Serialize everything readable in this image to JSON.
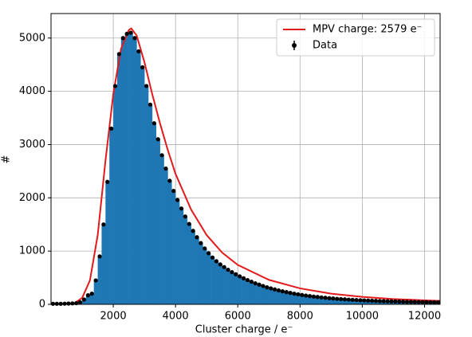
{
  "chart_data": {
    "type": "histogram",
    "xlabel": "Cluster charge / e⁻",
    "ylabel": "#",
    "bins": [
      0,
      125,
      250,
      375,
      500,
      625,
      750,
      875,
      1000,
      1125,
      1250,
      1375,
      1500,
      1625,
      1750,
      1875,
      2000,
      2125,
      2250,
      2375,
      2500,
      2625,
      2750,
      2875,
      3000,
      3125,
      3250,
      3375,
      3500,
      3625,
      3750,
      3875,
      4000,
      4125,
      4250,
      4375,
      4500,
      4625,
      4750,
      4875,
      5000,
      5125,
      5250,
      5375,
      5500,
      5625,
      5750,
      5875,
      6000,
      6125,
      6250,
      6375,
      6500,
      6625,
      6750,
      6875,
      7000,
      7125,
      7250,
      7375,
      7500,
      7625,
      7750,
      7875,
      8000,
      8125,
      8250,
      8375,
      8500,
      8625,
      8750,
      8875,
      9000,
      9125,
      9250,
      9375,
      9500,
      9625,
      9750,
      9875,
      10000,
      10125,
      10250,
      10375,
      10500,
      10625,
      10750,
      10875,
      11000,
      11125,
      11250,
      11375,
      11500,
      11625,
      11750,
      11875,
      12000,
      12125,
      12250,
      12375,
      12500
    ],
    "counts": [
      10,
      10,
      10,
      12,
      15,
      18,
      22,
      40,
      90,
      170,
      200,
      450,
      900,
      1500,
      2300,
      3300,
      4100,
      4700,
      5000,
      5080,
      5100,
      5000,
      4750,
      4450,
      4100,
      3750,
      3400,
      3100,
      2800,
      2550,
      2320,
      2130,
      1960,
      1800,
      1650,
      1510,
      1380,
      1260,
      1150,
      1050,
      960,
      880,
      810,
      750,
      700,
      650,
      605,
      565,
      525,
      490,
      455,
      425,
      395,
      370,
      345,
      320,
      300,
      280,
      262,
      245,
      230,
      215,
      200,
      188,
      176,
      165,
      155,
      146,
      138,
      130,
      123,
      116,
      110,
      104,
      99,
      94,
      89,
      85,
      81,
      77,
      74,
      71,
      68,
      65,
      62,
      60,
      58,
      56,
      54,
      52,
      50,
      48,
      46,
      45,
      44,
      42,
      41,
      40,
      39,
      38
    ],
    "color": "#1f77b4",
    "series": [
      {
        "name": "MPV charge: 2579 e⁻",
        "type": "line",
        "color": "#e31a1c",
        "x": [
          500,
          750,
          1000,
          1250,
          1500,
          1750,
          2000,
          2250,
          2500,
          2579,
          2750,
          3000,
          3250,
          3500,
          3750,
          4000,
          4500,
          5000,
          5500,
          6000,
          7000,
          8000,
          9000,
          10000,
          11000,
          12000,
          12500
        ],
        "values": [
          5,
          20,
          120,
          450,
          1300,
          2700,
          3950,
          4800,
          5150,
          5180,
          5050,
          4550,
          3950,
          3400,
          2900,
          2450,
          1780,
          1300,
          970,
          740,
          460,
          300,
          200,
          140,
          100,
          75,
          65
        ]
      },
      {
        "name": "Data",
        "type": "points",
        "color": "#000000"
      }
    ],
    "xlim": [
      0,
      12500
    ],
    "ylim": [
      0,
      5460
    ],
    "xticks": [
      2000,
      4000,
      6000,
      8000,
      10000,
      12000
    ],
    "yticks": [
      0,
      1000,
      2000,
      3000,
      4000,
      5000
    ],
    "grid": true,
    "legend": "upper right"
  }
}
